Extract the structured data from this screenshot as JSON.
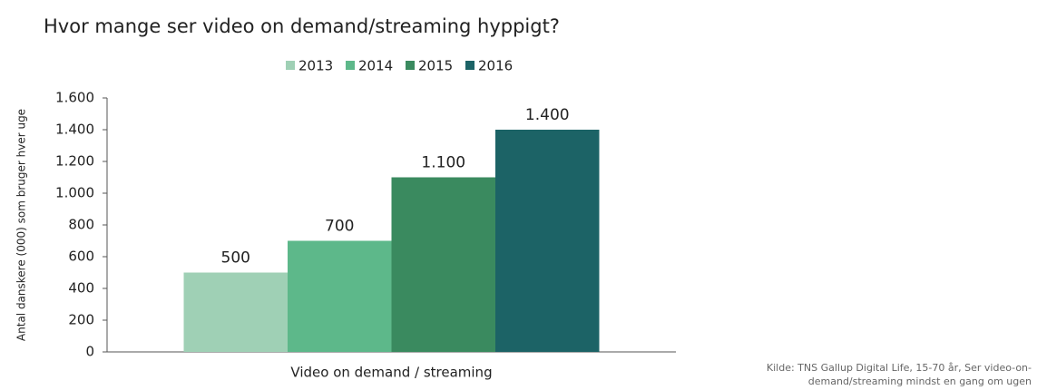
{
  "chart_data": {
    "type": "bar",
    "title": "Hvor mange ser video on demand/streaming hyppigt?",
    "y_label": "Antal danskere (000) som bruger hver uge",
    "categories": [
      "Video on demand / streaming"
    ],
    "series": [
      {
        "name": "2013",
        "color": "#9fd0b5",
        "values": [
          500
        ]
      },
      {
        "name": "2014",
        "color": "#5db88a",
        "values": [
          700
        ]
      },
      {
        "name": "2015",
        "color": "#3a8a5f",
        "values": [
          1100
        ],
        "value_labels": [
          "1.100"
        ]
      },
      {
        "name": "2016",
        "color": "#1c6366",
        "values": [
          1400
        ],
        "value_labels": [
          "1.400"
        ]
      }
    ],
    "ylim": [
      0,
      1600
    ],
    "yticks": [
      0,
      200,
      400,
      600,
      800,
      {
        "value": 1000,
        "label": "1.000"
      },
      {
        "value": 1200,
        "label": "1.200"
      },
      {
        "value": 1400,
        "label": "1.400"
      },
      {
        "value": 1600,
        "label": "1.600"
      }
    ],
    "grid": false,
    "legend": "top",
    "source": [
      "Kilde: TNS Gallup Digital Life, 15-70 år, Ser video-on-",
      "demand/streaming mindst en gang om ugen"
    ]
  }
}
